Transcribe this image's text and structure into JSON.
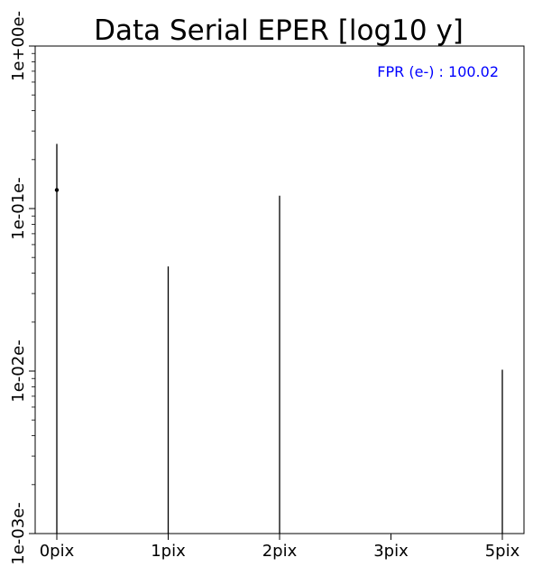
{
  "chart_data": {
    "type": "scatter",
    "title": "Data Serial EPER [log10 y]",
    "xlabel": "",
    "ylabel": "",
    "y_scale": "log",
    "ylim": [
      0.001,
      1
    ],
    "y_ticks": [
      {
        "value": 1,
        "label": "1e+00e-"
      },
      {
        "value": 0.1,
        "label": "1e-01e-"
      },
      {
        "value": 0.01,
        "label": "1e-02e-"
      },
      {
        "value": 0.001,
        "label": "1e-03e-"
      }
    ],
    "categories": [
      "0pix",
      "1pix",
      "2pix",
      "3pix",
      "5pix"
    ],
    "series": [
      {
        "values": [
          0.13,
          null,
          null,
          null,
          null
        ],
        "error_upper": [
          0.25,
          0.044,
          0.12,
          null,
          0.0102
        ],
        "color": "#000000"
      }
    ],
    "annotation": {
      "text": "FPR (e-) : 100.02",
      "color": "#0000ff",
      "placement": "top-right"
    },
    "grid": false,
    "legend": "none"
  }
}
